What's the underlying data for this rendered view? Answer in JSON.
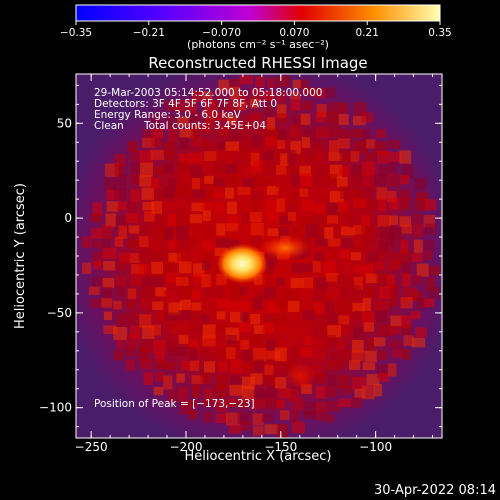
{
  "chart_data": {
    "type": "heatmap",
    "title": "Reconstructed RHESSI Image",
    "xlabel": "Heliocentric X (arcsec)",
    "ylabel": "Heliocentric Y (arcsec)",
    "xlim": [
      -258,
      -65
    ],
    "ylim": [
      -116,
      76
    ],
    "xticks": [
      -250,
      -200,
      -150,
      -100
    ],
    "yticks": [
      50,
      0,
      -50,
      -100
    ],
    "colorbar": {
      "unit_label": "(photons cm⁻² s⁻¹ asec⁻²)",
      "ticks": [
        "−0.35",
        "−0.21",
        "−0.070",
        "0.070",
        "0.21",
        "0.35"
      ],
      "range": [
        -0.35,
        0.35
      ]
    },
    "annotations": [
      "29-Mar-2003 05:14:52.000 to 05:18:00.000",
      "Detectors: 3F 4F 5F 6F 7F 8F, Att 0",
      "Energy Range: 3.0 - 6.0 keV",
      "Clean",
      "Total counts: 3.45E+04"
    ],
    "peak_label": "Position of Peak = [−173,−23]",
    "peak_position": [
      -173,
      -23
    ],
    "timestamp": "30-Apr-2022 08:14",
    "features": [
      {
        "x": -173,
        "y": -23,
        "value": 0.35
      },
      {
        "x": -150,
        "y": -18,
        "value": 0.18
      },
      {
        "x": -135,
        "y": -90,
        "value": 0.12
      }
    ]
  }
}
